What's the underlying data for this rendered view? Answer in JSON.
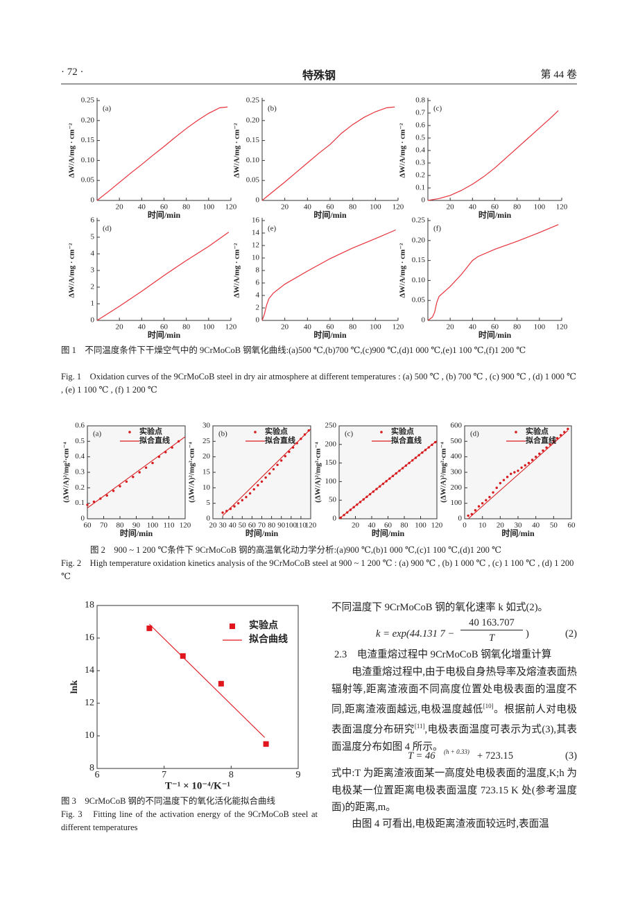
{
  "header": {
    "page": "· 72 ·",
    "journal": "特殊钢",
    "volume": "第 44 卷"
  },
  "chart_data": [
    {
      "type": "line",
      "label": "(a)",
      "xlabel": "时间/min",
      "ylabel": "ΔW/A/mg · cm⁻²",
      "color": "#e8303a",
      "xlim": [
        0,
        120
      ],
      "xticks": [
        20,
        40,
        60,
        80,
        100,
        120
      ],
      "ylim": [
        0,
        0.25
      ],
      "yticks": [
        0,
        0.05,
        {
          "value": 0.1,
          "label": "0.10"
        },
        0.15,
        {
          "value": 0.2,
          "label": "0.20"
        },
        0.25
      ],
      "x": [
        0,
        10,
        20,
        30,
        40,
        50,
        60,
        70,
        80,
        90,
        100,
        110,
        117
      ],
      "values": [
        0,
        0.022,
        0.045,
        0.068,
        0.09,
        0.113,
        0.135,
        0.158,
        0.18,
        0.2,
        0.218,
        0.232,
        0.234
      ]
    },
    {
      "type": "line",
      "label": "(b)",
      "xlabel": "时间/min",
      "ylabel": "ΔW/A/mg · cm⁻²",
      "color": "#e8303a",
      "xlim": [
        0,
        120
      ],
      "xticks": [
        20,
        40,
        60,
        80,
        100,
        120
      ],
      "ylim": [
        0,
        0.25
      ],
      "yticks": [
        0,
        0.05,
        {
          "value": 0.1,
          "label": "0.10"
        },
        0.15,
        {
          "value": 0.2,
          "label": "0.20"
        },
        0.25
      ],
      "x": [
        0,
        10,
        20,
        30,
        40,
        50,
        60,
        70,
        80,
        90,
        100,
        110,
        117
      ],
      "values": [
        0,
        0.023,
        0.046,
        0.07,
        0.094,
        0.118,
        0.14,
        0.168,
        0.19,
        0.208,
        0.222,
        0.232,
        0.234
      ]
    },
    {
      "type": "line",
      "label": "(c)",
      "xlabel": "时间/min",
      "ylabel": "ΔW/A/mg · cm⁻²",
      "color": "#e8303a",
      "xlim": [
        0,
        120
      ],
      "xticks": [
        20,
        40,
        60,
        80,
        100,
        120
      ],
      "ylim": [
        0,
        0.8
      ],
      "yticks": [
        0,
        0.1,
        0.2,
        0.3,
        0.4,
        0.5,
        0.6,
        0.7,
        0.8
      ],
      "x": [
        0,
        10,
        20,
        30,
        40,
        50,
        60,
        70,
        80,
        90,
        100,
        110,
        117
      ],
      "values": [
        0,
        0.015,
        0.04,
        0.08,
        0.13,
        0.19,
        0.26,
        0.34,
        0.42,
        0.5,
        0.58,
        0.66,
        0.72
      ]
    },
    {
      "type": "line",
      "label": "(d)",
      "xlabel": "时间/min",
      "ylabel": "ΔW/A/mg · cm⁻²",
      "color": "#e8303a",
      "xlim": [
        0,
        120
      ],
      "xticks": [
        20,
        40,
        60,
        80,
        100,
        120
      ],
      "ylim": [
        0,
        6
      ],
      "yticks": [
        0,
        1,
        2,
        3,
        4,
        5,
        6
      ],
      "x": [
        0,
        20,
        40,
        60,
        80,
        100,
        118
      ],
      "values": [
        0,
        0.85,
        1.75,
        2.7,
        3.6,
        4.45,
        5.3
      ]
    },
    {
      "type": "line",
      "label": "(e)",
      "xlabel": "时间/min",
      "ylabel": "ΔW/A/mg · cm⁻²",
      "color": "#e8303a",
      "xlim": [
        0,
        120
      ],
      "xticks": [
        20,
        40,
        60,
        80,
        100,
        120
      ],
      "ylim": [
        0,
        16
      ],
      "yticks": [
        0,
        2,
        4,
        6,
        8,
        10,
        12,
        14,
        16
      ],
      "x": [
        0,
        2,
        4,
        6,
        10,
        20,
        40,
        60,
        80,
        100,
        118
      ],
      "values": [
        0,
        1,
        2.5,
        3.5,
        4.4,
        5.8,
        7.9,
        9.9,
        11.6,
        13.1,
        14.5
      ]
    },
    {
      "type": "line",
      "label": "(f)",
      "xlabel": "时间/min",
      "ylabel": "ΔW/A/mg · cm⁻²",
      "color": "#e8303a",
      "xlim": [
        0,
        120
      ],
      "xticks": [
        20,
        40,
        60,
        80,
        100,
        120
      ],
      "ylim": [
        0,
        0.25
      ],
      "yticks": [
        0,
        0.05,
        {
          "value": 0.1,
          "label": "0.10"
        },
        0.15,
        {
          "value": 0.2,
          "label": "0.20"
        },
        0.25
      ],
      "x": [
        0,
        4,
        6,
        8,
        10,
        20,
        30,
        40,
        45,
        60,
        80,
        100,
        117
      ],
      "values": [
        0,
        0.008,
        0.02,
        0.045,
        0.06,
        0.085,
        0.115,
        0.15,
        0.16,
        0.178,
        0.198,
        0.22,
        0.24
      ]
    },
    {
      "type": "scatter",
      "label": "(a)",
      "xlabel": "时间/min",
      "ylabel": "(ΔW/A)²/mg²·cm⁻⁴",
      "legend": "upper right",
      "xlim": [
        60,
        120
      ],
      "xticks": [
        60,
        70,
        80,
        90,
        100,
        110,
        120
      ],
      "ylim": [
        0,
        0.6
      ],
      "yticks": [
        0,
        0.1,
        0.2,
        0.3,
        0.4,
        0.5,
        0.6
      ],
      "series": [
        {
          "name": "实验点",
          "color": "#d7191c",
          "marker": "circle",
          "x": [
            60,
            64,
            68,
            72,
            76,
            80,
            84,
            88,
            92,
            96,
            100,
            104,
            108,
            112,
            116
          ],
          "values": [
            0.09,
            0.11,
            0.13,
            0.15,
            0.18,
            0.21,
            0.24,
            0.27,
            0.3,
            0.33,
            0.36,
            0.4,
            0.43,
            0.46,
            0.5
          ]
        },
        {
          "name": "拟合直线",
          "color": "#d7191c",
          "type": "line",
          "x": [
            60,
            120
          ],
          "values": [
            0.07,
            0.53
          ]
        }
      ]
    },
    {
      "type": "scatter",
      "label": "(b)",
      "xlabel": "时间/min",
      "ylabel": "(ΔW/A)²/mg²·cm⁻⁴",
      "legend": "upper right",
      "xlim": [
        20,
        120
      ],
      "xticks": [
        20,
        30,
        40,
        50,
        60,
        70,
        80,
        90,
        100,
        110,
        120
      ],
      "ylim": [
        0,
        30
      ],
      "yticks": [
        0,
        5,
        10,
        15,
        20,
        25,
        30
      ],
      "series": [
        {
          "name": "实验点",
          "color": "#d7191c",
          "marker": "circle",
          "x": [
            30,
            34,
            38,
            42,
            46,
            50,
            54,
            58,
            62,
            66,
            70,
            74,
            78,
            82,
            86,
            90,
            94,
            98,
            102,
            106,
            110,
            114,
            118
          ],
          "values": [
            2.0,
            2.5,
            3.2,
            4.0,
            5.0,
            6.0,
            7.0,
            8.2,
            9.5,
            10.8,
            12.0,
            13.3,
            14.6,
            16.0,
            17.4,
            18.8,
            20.2,
            21.6,
            23.0,
            24.4,
            25.8,
            27.2,
            28.5
          ]
        },
        {
          "name": "拟合直线",
          "color": "#d7191c",
          "type": "line",
          "x": [
            30,
            120
          ],
          "values": [
            1,
            29
          ]
        }
      ]
    },
    {
      "type": "scatter",
      "label": "(c)",
      "xlabel": "时间/min",
      "ylabel": "(ΔW/A)²/mg²·cm⁻⁴",
      "legend": "upper right",
      "xlim": [
        0,
        120
      ],
      "xticks": [
        20,
        40,
        60,
        80,
        100,
        120
      ],
      "ylim": [
        0,
        250
      ],
      "yticks": [
        0,
        50,
        100,
        150,
        200,
        250
      ],
      "series": [
        {
          "name": "实验点",
          "color": "#d7191c",
          "marker": "circle",
          "x": [
            2,
            6,
            10,
            14,
            18,
            22,
            26,
            30,
            34,
            38,
            42,
            46,
            50,
            54,
            58,
            62,
            66,
            70,
            74,
            78,
            82,
            86,
            90,
            94,
            98,
            102,
            106,
            110,
            114,
            118
          ],
          "values": [
            3,
            10,
            17,
            24,
            31,
            38,
            45,
            52,
            59,
            66,
            73,
            80,
            87,
            94,
            101,
            108,
            115,
            122,
            129,
            136,
            143,
            150,
            157,
            164,
            171,
            178,
            185,
            192,
            199,
            206
          ]
        },
        {
          "name": "拟合直线",
          "color": "#d7191c",
          "type": "line",
          "x": [
            0,
            120
          ],
          "values": [
            0,
            210
          ]
        }
      ]
    },
    {
      "type": "scatter",
      "label": "(d)",
      "xlabel": "时间/min",
      "ylabel": "(ΔW/A)²/mg²·cm⁻⁴",
      "legend": "upper right",
      "xlim": [
        0,
        60
      ],
      "xticks": [
        0,
        10,
        20,
        30,
        40,
        50,
        60
      ],
      "ylim": [
        0,
        600
      ],
      "yticks": [
        0,
        100,
        200,
        300,
        400,
        500,
        600
      ],
      "series": [
        {
          "name": "实验点",
          "color": "#d7191c",
          "marker": "circle",
          "x": [
            2,
            4,
            6,
            8,
            10,
            12,
            14,
            16,
            18,
            20,
            22,
            24,
            26,
            28,
            30,
            32,
            34,
            36,
            38,
            40,
            42,
            44,
            46,
            48,
            50,
            52,
            54,
            56,
            58
          ],
          "values": [
            20,
            30,
            55,
            80,
            100,
            120,
            140,
            170,
            200,
            230,
            250,
            270,
            290,
            300,
            310,
            330,
            345,
            360,
            380,
            400,
            420,
            440,
            460,
            480,
            500,
            520,
            540,
            560,
            580
          ]
        },
        {
          "name": "拟合直线",
          "color": "#d7191c",
          "type": "line",
          "x": [
            2,
            58
          ],
          "values": [
            0,
            570
          ]
        }
      ]
    },
    {
      "type": "scatter",
      "xlabel": "T⁻¹ × 10⁻⁴/K⁻¹",
      "ylabel": "lnk",
      "legend": "upper right",
      "xlim": [
        6,
        9
      ],
      "xticks": [
        6,
        7,
        8,
        9
      ],
      "ylim": [
        8,
        18
      ],
      "yticks": [
        8,
        10,
        12,
        14,
        16,
        18
      ],
      "series": [
        {
          "name": "实验点",
          "color": "#e0151d",
          "marker": "square",
          "x": [
            6.78,
            7.28,
            7.85,
            8.52
          ],
          "values": [
            16.6,
            14.9,
            13.2,
            9.5
          ]
        },
        {
          "name": "拟合曲线",
          "color": "#e0151d",
          "type": "line",
          "x": [
            6.78,
            8.5
          ],
          "values": [
            16.85,
            9.9
          ]
        }
      ]
    }
  ],
  "captions": {
    "fig1_zh": "图 1　不同温度条件下干燥空气中的 9CrMoCoB 钢氧化曲线:(a)500 ℃,(b)700 ℃,(c)900 ℃,(d)1 000 ℃,(e)1 100 ℃,(f)1 200 ℃",
    "fig1_en": "Fig. 1　Oxidation curves of the 9CrMoCoB steel in dry air atmosphere at different temperatures : (a) 500 ℃ , (b) 700 ℃ , (c) 900 ℃ , (d) 1 000 ℃ , (e) 1 100 ℃ , (f) 1 200 ℃",
    "fig2_zh": "图 2　900 ~ 1 200 ℃条件下 9CrMoCoB 钢的高温氧化动力学分析:(a)900 ℃,(b)1 000 ℃,(c)1 100 ℃,(d)1 200 ℃",
    "fig2_en": "Fig. 2　High temperature oxidation kinetics analysis of the 9CrMoCoB steel at 900 ~ 1 200 ℃ : (a) 900 ℃ , (b) 1 000 ℃ , (c) 1 100 ℃ , (d) 1 200 ℃",
    "fig3_zh": "图 3　9CrMoCoB 钢的不同温度下的氧化活化能拟合曲线",
    "fig3_en": "Fig. 3　Fitting line of the activation energy of the 9CrMoCoB steel at different temperatures"
  },
  "body": {
    "p1": "不同温度下 9CrMoCoB 钢的氧化速率 k 如式(2)。",
    "eq2": {
      "lhs": "k = exp(44.131 7 −",
      "num": "40 163.707",
      "den": "T",
      "rhs": ")",
      "no": "(2)"
    },
    "section": "2.3　电渣重熔过程中 9CrMoCoB 钢氧化增重计算",
    "p2": [
      "电渣重熔过程中,由于电极自身热导率及熔渣表面热辐射等,距离渣液面不同高度位置处电极表面的温度不同,距离渣液面越远,电极温度越低",
      "[10]",
      "。根据前人对电极表面温度分布研究",
      "[11]",
      ",电极表面温度可表示为式(3),其表面温度分布如图 4 所示。"
    ],
    "eq3": {
      "base": "T = 46",
      "exp": "(h + 0.33)",
      "rest": "+ 723.15",
      "no": "(3)"
    },
    "p3": "式中:T 为距离渣液面某一高度处电极表面的温度,K;h 为电极某一位置距离电极表面温度 723.15 K 处(参考温度面)的距离,m。",
    "p4": "由图 4 可看出,电极距离渣液面较远时,表面温"
  }
}
